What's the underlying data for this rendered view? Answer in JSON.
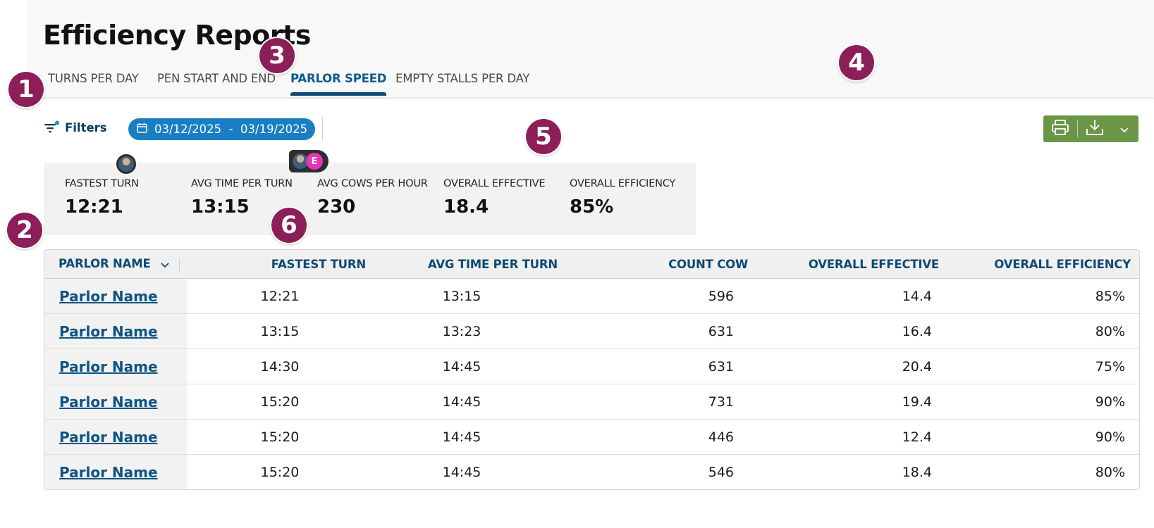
{
  "header": {
    "title": "Efficiency Reports",
    "tabs": [
      {
        "label": "TURNS PER DAY",
        "active": false
      },
      {
        "label": "PEN START AND END",
        "active": false
      },
      {
        "label": "PARLOR SPEED",
        "active": true
      },
      {
        "label": "EMPTY STALLS PER DAY",
        "active": false
      }
    ]
  },
  "toolbar": {
    "filters_label": "Filters",
    "date_range": "03/12/2025  -  03/19/2025",
    "print_icon": "printer-icon",
    "download_icon": "download-icon",
    "dropdown_icon": "chevron-down-icon"
  },
  "summary": {
    "metrics": [
      {
        "label": "FASTEST TURN",
        "value": "12:21"
      },
      {
        "label": "AVG TIME PER TURN",
        "value": "13:15"
      },
      {
        "label": "AVG COWS PER HOUR",
        "value": "230"
      },
      {
        "label": "OVERALL EFFECTIVE",
        "value": "18.4"
      },
      {
        "label": "OVERALL EFFICIENCY",
        "value": "85%"
      }
    ]
  },
  "avatars": {
    "letter": "E"
  },
  "annotations": [
    "1",
    "2",
    "3",
    "4",
    "5",
    "6"
  ],
  "table": {
    "columns": [
      "PARLOR NAME",
      "FASTEST TURN",
      "AVG TIME PER TURN",
      "COUNT COW",
      "OVERALL EFFECTIVE",
      "OVERALL EFFICIENCY"
    ],
    "rows": [
      [
        "Parlor Name",
        "12:21",
        "13:15",
        "596",
        "14.4",
        "85%"
      ],
      [
        "Parlor Name",
        "13:15",
        "13:23",
        "631",
        "16.4",
        "80%"
      ],
      [
        "Parlor Name",
        "14:30",
        "14:45",
        "631",
        "20.4",
        "75%"
      ],
      [
        "Parlor Name",
        "15:20",
        "14:45",
        "731",
        "19.4",
        "90%"
      ],
      [
        "Parlor Name",
        "15:20",
        "14:45",
        "446",
        "12.4",
        "90%"
      ],
      [
        "Parlor Name",
        "15:20",
        "14:45",
        "546",
        "18.4",
        "80%"
      ]
    ]
  },
  "colors": {
    "primary": "#0d4a73",
    "date_pill": "#1a7ec4",
    "action_green": "#6b9647",
    "annotation": "#8c1f58",
    "avatar_pink": "#e535b7"
  }
}
